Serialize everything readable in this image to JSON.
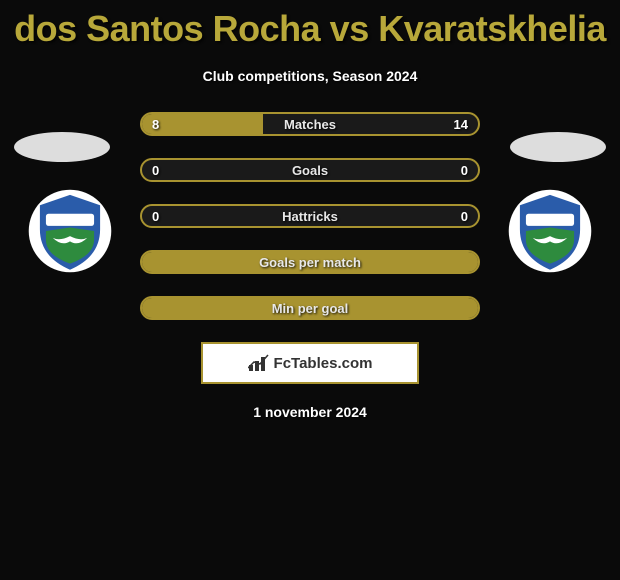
{
  "title": "dos Santos Rocha vs Kvaratskhelia",
  "subtitle": "Club competitions, Season 2024",
  "date": "1 november 2024",
  "brand": "FcTables.com",
  "colors": {
    "accent": "#a89330",
    "title": "#b8a83a",
    "bg": "#0a0a0a",
    "shield_blue": "#2a5caa",
    "shield_green": "#2e8b3e",
    "shield_white": "#ffffff"
  },
  "bars": [
    {
      "label": "Matches",
      "left": "8",
      "right": "14",
      "left_pct": 36,
      "right_pct": 0,
      "full": false
    },
    {
      "label": "Goals",
      "left": "0",
      "right": "0",
      "left_pct": 0,
      "right_pct": 0,
      "full": false
    },
    {
      "label": "Hattricks",
      "left": "0",
      "right": "0",
      "left_pct": 0,
      "right_pct": 0,
      "full": false
    },
    {
      "label": "Goals per match",
      "left": "",
      "right": "",
      "left_pct": 0,
      "right_pct": 0,
      "full": true
    },
    {
      "label": "Min per goal",
      "left": "",
      "right": "",
      "left_pct": 0,
      "right_pct": 0,
      "full": true
    }
  ]
}
